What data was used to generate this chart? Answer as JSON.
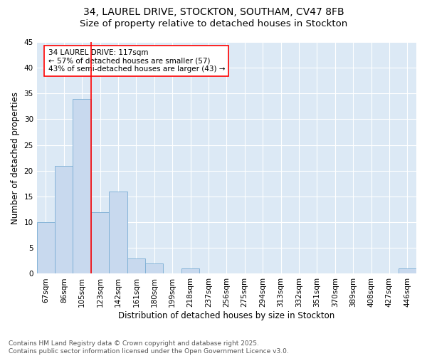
{
  "title1": "34, LAUREL DRIVE, STOCKTON, SOUTHAM, CV47 8FB",
  "title2": "Size of property relative to detached houses in Stockton",
  "xlabel": "Distribution of detached houses by size in Stockton",
  "ylabel": "Number of detached properties",
  "categories": [
    "67sqm",
    "86sqm",
    "105sqm",
    "123sqm",
    "142sqm",
    "161sqm",
    "180sqm",
    "199sqm",
    "218sqm",
    "237sqm",
    "256sqm",
    "275sqm",
    "294sqm",
    "313sqm",
    "332sqm",
    "351sqm",
    "370sqm",
    "389sqm",
    "408sqm",
    "427sqm",
    "446sqm"
  ],
  "values": [
    10,
    21,
    34,
    12,
    16,
    3,
    2,
    0,
    1,
    0,
    0,
    0,
    0,
    0,
    0,
    0,
    0,
    0,
    0,
    0,
    1
  ],
  "bar_color": "#c8d9ee",
  "bar_edge_color": "#7aadd4",
  "vline_x": 2.5,
  "vline_color": "red",
  "annotation_text": "34 LAUREL DRIVE: 117sqm\n← 57% of detached houses are smaller (57)\n43% of semi-detached houses are larger (43) →",
  "annotation_box_color": "white",
  "annotation_box_edge": "red",
  "ylim": [
    0,
    45
  ],
  "yticks": [
    0,
    5,
    10,
    15,
    20,
    25,
    30,
    35,
    40,
    45
  ],
  "background_color": "#dce9f5",
  "grid_color": "#ffffff",
  "footer": "Contains HM Land Registry data © Crown copyright and database right 2025.\nContains public sector information licensed under the Open Government Licence v3.0.",
  "title1_fontsize": 10,
  "title2_fontsize": 9.5,
  "xlabel_fontsize": 8.5,
  "ylabel_fontsize": 8.5,
  "tick_fontsize": 7.5,
  "annotation_fontsize": 7.5,
  "footer_fontsize": 6.5
}
